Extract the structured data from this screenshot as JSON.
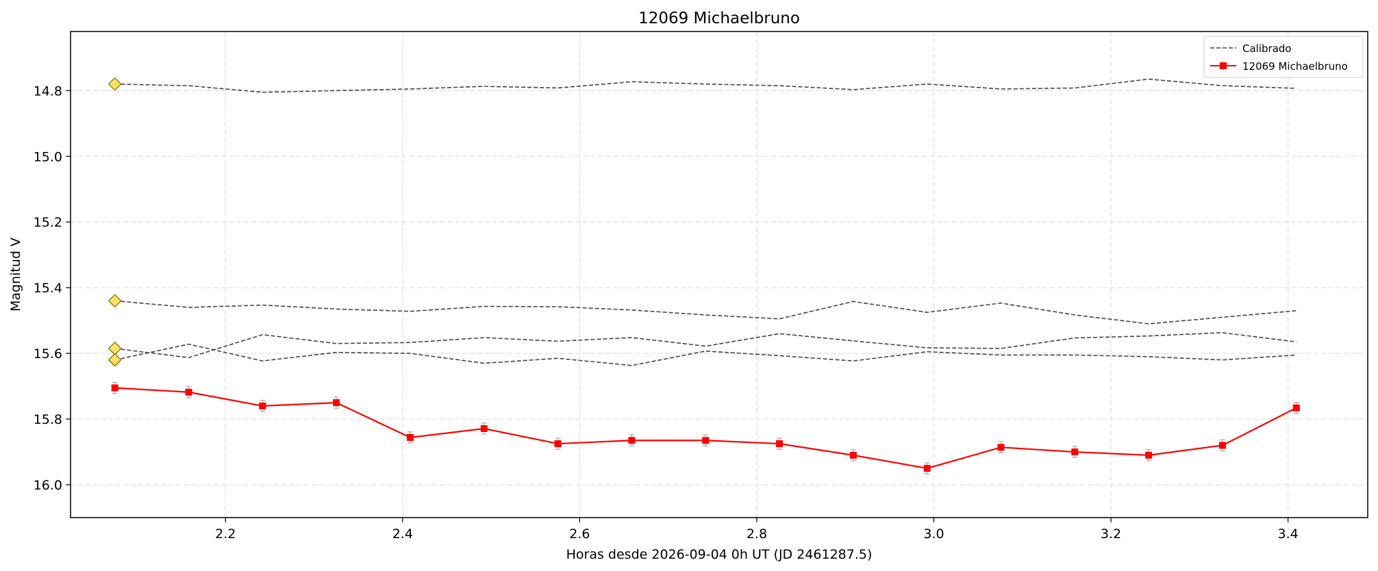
{
  "chart_data": {
    "type": "line",
    "title": "12069 Michaelbruno",
    "xlabel": "Horas desde 2026-09-04 0h UT (JD 2461287.5)",
    "ylabel": "Magnitud V",
    "xlim": [
      2.025,
      3.49
    ],
    "ylim": [
      16.1,
      14.62
    ],
    "y_inverted": true,
    "grid": true,
    "legend_position": "top-right",
    "x_ticks": [
      "2.2",
      "2.4",
      "2.6",
      "2.8",
      "3.0",
      "3.2",
      "3.4"
    ],
    "y_ticks": [
      "14.8",
      "15.0",
      "15.2",
      "15.4",
      "15.6",
      "15.8",
      "16.0"
    ],
    "x": [
      2.075,
      2.1584,
      2.2418,
      2.3252,
      2.4086,
      2.492,
      2.5754,
      2.6588,
      2.7422,
      2.8256,
      2.909,
      2.9924,
      3.0758,
      3.1592,
      3.2426,
      3.326,
      3.4094
    ],
    "series": [
      {
        "name": "12069 Michaelbruno",
        "color": "#ff0000",
        "marker": "square",
        "values": [
          15.705,
          15.718,
          15.76,
          15.75,
          15.856,
          15.829,
          15.875,
          15.865,
          15.865,
          15.875,
          15.91,
          15.95,
          15.886,
          15.9,
          15.91,
          15.88,
          15.766
        ],
        "error": 0.017
      },
      {
        "name": "Calibrado",
        "color": "#444444",
        "dashed": true,
        "values": [
          14.78,
          14.785,
          14.805,
          14.8,
          14.795,
          14.787,
          14.792,
          14.773,
          14.78,
          14.785,
          14.797,
          14.78,
          14.795,
          14.792,
          14.765,
          14.785,
          14.793
        ]
      },
      {
        "name": "",
        "color": "#444444",
        "dashed": true,
        "values": [
          15.44,
          15.46,
          15.453,
          15.465,
          15.472,
          15.457,
          15.458,
          15.468,
          15.483,
          15.495,
          15.442,
          15.475,
          15.447,
          15.483,
          15.51,
          15.49,
          15.47
        ]
      },
      {
        "name": "",
        "color": "#444444",
        "dashed": true,
        "values": [
          15.585,
          15.613,
          15.543,
          15.57,
          15.567,
          15.552,
          15.563,
          15.552,
          15.578,
          15.54,
          15.562,
          15.583,
          15.585,
          15.553,
          15.547,
          15.537,
          15.565
        ]
      },
      {
        "name": "",
        "color": "#444444",
        "dashed": true,
        "values": [
          15.62,
          15.572,
          15.623,
          15.597,
          15.6,
          15.63,
          15.615,
          15.637,
          15.593,
          15.607,
          15.623,
          15.595,
          15.605,
          15.605,
          15.61,
          15.62,
          15.605
        ]
      }
    ],
    "reference_markers": {
      "color": "#ffe066",
      "stroke": "#7a6a00",
      "shape": "diamond",
      "points": [
        {
          "x": 2.075,
          "y": 14.78
        },
        {
          "x": 2.075,
          "y": 15.44
        },
        {
          "x": 2.075,
          "y": 15.585
        },
        {
          "x": 2.075,
          "y": 15.62
        }
      ]
    }
  }
}
